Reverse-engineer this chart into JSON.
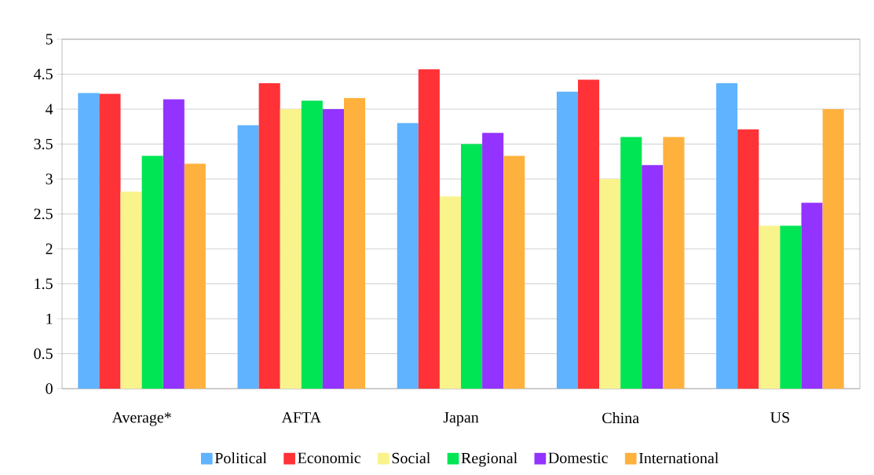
{
  "chart_data": {
    "type": "bar",
    "categories": [
      "Average*",
      "AFTA",
      "Japan",
      "China",
      "US"
    ],
    "series": [
      {
        "name": "Political",
        "color": "#5fb3ff",
        "values": [
          4.23,
          3.77,
          3.8,
          4.25,
          4.37
        ]
      },
      {
        "name": "Economic",
        "color": "#ff3237",
        "values": [
          4.22,
          4.37,
          4.57,
          4.42,
          3.71
        ]
      },
      {
        "name": "Social",
        "color": "#f9f38c",
        "values": [
          2.82,
          4.0,
          2.75,
          3.0,
          2.33
        ]
      },
      {
        "name": "Regional",
        "color": "#00e554",
        "values": [
          3.33,
          4.12,
          3.5,
          3.6,
          2.33
        ]
      },
      {
        "name": "Domestic",
        "color": "#9233ff",
        "values": [
          4.14,
          4.0,
          3.66,
          3.2,
          2.66
        ]
      },
      {
        "name": "International",
        "color": "#ffb13d",
        "values": [
          3.22,
          4.16,
          3.33,
          3.6,
          4.0
        ]
      }
    ],
    "ylim": [
      0,
      5
    ],
    "yticks": [
      0,
      0.5,
      1,
      1.5,
      2,
      2.5,
      3,
      3.5,
      4,
      4.5,
      5
    ],
    "grid": "y",
    "legend": "bottom"
  }
}
